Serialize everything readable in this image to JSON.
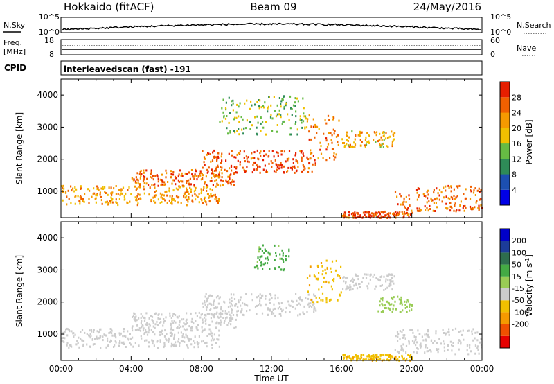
{
  "header": {
    "station": "Hokkaido (fitACF)",
    "beam": "Beam 09",
    "date": "24/May/2016"
  },
  "noise_panel": {
    "left_label": "N.Sky",
    "right_label": "N.Search",
    "left_ticks": [
      "10^5",
      "10^0"
    ],
    "right_ticks": [
      "10^5",
      "10^0"
    ]
  },
  "freq_panel": {
    "left_label_1": "Freq.",
    "left_label_2": "[MHz]",
    "right_label": "Nave",
    "left_ticks": [
      "18",
      "8"
    ],
    "right_ticks": [
      "60",
      "0"
    ]
  },
  "cpid": {
    "label": "CPID",
    "value": "interleavedscan (fast) -191"
  },
  "x_axis": {
    "ticks": [
      "00:00",
      "04:00",
      "08:00",
      "12:00",
      "16:00",
      "20:00",
      "00:00"
    ],
    "label": "Time UT"
  },
  "colors": {
    "power_scale": [
      "#0000e6",
      "#1c4fb0",
      "#2e8b57",
      "#66bb44",
      "#f0c000",
      "#f59a00",
      "#f06000",
      "#e61e00"
    ],
    "velocity_scale": [
      "#e60000",
      "#f05000",
      "#f59a00",
      "#f0c000",
      "#cccccc",
      "#99cc55",
      "#44aa44",
      "#2e6e4e",
      "#1c3c9a",
      "#0000c8"
    ]
  },
  "chart_data": [
    {
      "type": "heatmap",
      "title": "",
      "xlabel": "",
      "ylabel": "Slant Range [km]",
      "xlim": [
        0,
        24
      ],
      "ylim": [
        180,
        4500
      ],
      "yticks": [
        1000,
        2000,
        3000,
        4000
      ],
      "colorbar_label": "Power [dB]",
      "colorbar_ticks": [
        "28",
        "24",
        "20",
        "16",
        "12",
        "8",
        "4"
      ],
      "colorbar_range": [
        0,
        32
      ],
      "echo_bands": [
        {
          "t_start": 0,
          "t_end": 9,
          "range_low": 600,
          "range_high": 1200,
          "power": 22
        },
        {
          "t_start": 4,
          "t_end": 10,
          "range_low": 1200,
          "range_high": 1700,
          "power": 26
        },
        {
          "t_start": 8,
          "t_end": 14.5,
          "range_low": 1600,
          "range_high": 2300,
          "power": 28
        },
        {
          "t_start": 14,
          "t_end": 16,
          "range_low": 2000,
          "range_high": 3400,
          "power": 24
        },
        {
          "t_start": 16,
          "t_end": 19,
          "range_low": 2400,
          "range_high": 2900,
          "power": 20
        },
        {
          "t_start": 19,
          "t_end": 24,
          "range_low": 400,
          "range_high": 1200,
          "power": 26
        },
        {
          "t_start": 16,
          "t_end": 20,
          "range_low": 200,
          "range_high": 400,
          "power": 28
        },
        {
          "t_start": 9,
          "t_end": 14,
          "range_low": 2800,
          "range_high": 4000,
          "power": 14
        }
      ]
    },
    {
      "type": "heatmap",
      "title": "",
      "xlabel": "Time UT",
      "ylabel": "Slant Range [km]",
      "xlim": [
        0,
        24
      ],
      "ylim": [
        180,
        4500
      ],
      "yticks": [
        1000,
        2000,
        3000,
        4000
      ],
      "colorbar_label": "Velocity [m s^-1]",
      "colorbar_ticks": [
        "200",
        "100",
        "50",
        "15",
        "-15",
        "-50",
        "-100",
        "-200"
      ],
      "colorbar_range": [
        -250,
        250
      ],
      "echo_bands": [
        {
          "t_start": 0,
          "t_end": 9,
          "range_low": 600,
          "range_high": 1200,
          "velocity": 0
        },
        {
          "t_start": 4,
          "t_end": 10,
          "range_low": 1200,
          "range_high": 1700,
          "velocity": 0
        },
        {
          "t_start": 8,
          "t_end": 14.5,
          "range_low": 1600,
          "range_high": 2300,
          "velocity": 0
        },
        {
          "t_start": 14,
          "t_end": 16,
          "range_low": 2000,
          "range_high": 3400,
          "velocity": -40
        },
        {
          "t_start": 16,
          "t_end": 19,
          "range_low": 2400,
          "range_high": 2900,
          "velocity": 0
        },
        {
          "t_start": 18,
          "t_end": 20,
          "range_low": 1700,
          "range_high": 2200,
          "velocity": 30
        },
        {
          "t_start": 19,
          "t_end": 24,
          "range_low": 400,
          "range_high": 1200,
          "velocity": 0
        },
        {
          "t_start": 16,
          "t_end": 20,
          "range_low": 200,
          "range_high": 400,
          "velocity": -40
        },
        {
          "t_start": 11,
          "t_end": 13,
          "range_low": 3000,
          "range_high": 3800,
          "velocity": 60
        }
      ]
    }
  ]
}
